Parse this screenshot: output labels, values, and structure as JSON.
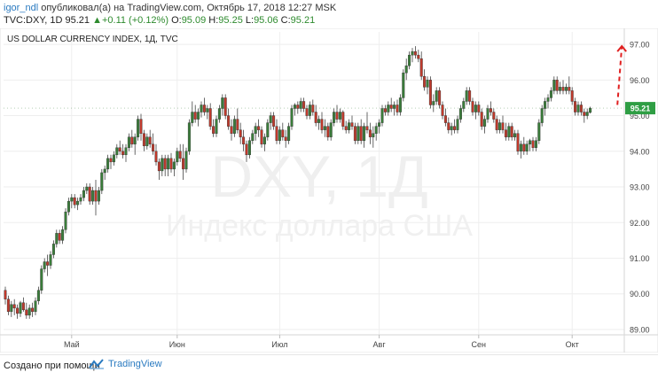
{
  "header": {
    "author": "igor_ndl",
    "published": "опубликовал(а) на TradingView.com, Октябрь 17, 2018 12:27 MSK",
    "symbol": "TVC:DXY, 1D",
    "last": "95.21",
    "change_arrow": "▲",
    "change": "+0.11 (+0.12%)",
    "o_label": "O:",
    "o_value": "95.09",
    "h_label": "H:",
    "h_value": "95.25",
    "l_label": "L:",
    "l_value": "95.06",
    "c_label": "C:",
    "c_value": "95.21"
  },
  "footer": {
    "credit": "Создано при помощи",
    "brand": "TradingView"
  },
  "chart_data": {
    "type": "candlestick",
    "title": "US DOLLAR CURRENCY INDEX, 1Д, TVC",
    "watermark_main": "DXY, 1Д",
    "watermark_sub": "Индекс доллара США",
    "ylim": [
      88.85,
      97.35
    ],
    "yticks": [
      89.0,
      90.0,
      91.0,
      92.0,
      93.0,
      94.0,
      95.0,
      96.0,
      97.0
    ],
    "ytick_labels": [
      "89.00",
      "90.00",
      "91.00",
      "92.00",
      "93.00",
      "94.00",
      "95.00",
      "96.00",
      "97.00"
    ],
    "xtick_labels": [
      "Май",
      "Июн",
      "Июл",
      "Авг",
      "Сен",
      "Окт"
    ],
    "xtick_index": [
      22,
      57,
      91,
      124,
      157,
      188
    ],
    "last_price": 95.21,
    "last_price_label": "95.21",
    "colors": {
      "up": "#3a7d3a",
      "down": "#c0392b",
      "accent": "#2a7ac0",
      "forecast": "#e02020"
    },
    "forecast_arrow": {
      "from_index": 203,
      "from": 95.3,
      "to": 96.95
    },
    "candles": [
      {
        "o": 90.1,
        "h": 90.2,
        "l": 89.7,
        "c": 89.85
      },
      {
        "o": 89.85,
        "h": 89.95,
        "l": 89.4,
        "c": 89.5
      },
      {
        "o": 89.5,
        "h": 89.8,
        "l": 89.35,
        "c": 89.7
      },
      {
        "o": 89.7,
        "h": 89.85,
        "l": 89.4,
        "c": 89.6
      },
      {
        "o": 89.6,
        "h": 89.7,
        "l": 89.3,
        "c": 89.45
      },
      {
        "o": 89.45,
        "h": 89.8,
        "l": 89.35,
        "c": 89.75
      },
      {
        "o": 89.75,
        "h": 89.9,
        "l": 89.5,
        "c": 89.55
      },
      {
        "o": 89.55,
        "h": 89.75,
        "l": 89.3,
        "c": 89.4
      },
      {
        "o": 89.4,
        "h": 89.7,
        "l": 89.3,
        "c": 89.6
      },
      {
        "o": 89.6,
        "h": 89.75,
        "l": 89.35,
        "c": 89.5
      },
      {
        "o": 89.5,
        "h": 89.9,
        "l": 89.4,
        "c": 89.8
      },
      {
        "o": 89.8,
        "h": 90.2,
        "l": 89.7,
        "c": 90.1
      },
      {
        "o": 90.1,
        "h": 90.8,
        "l": 90.0,
        "c": 90.7
      },
      {
        "o": 90.7,
        "h": 91.0,
        "l": 90.6,
        "c": 90.9
      },
      {
        "o": 90.9,
        "h": 91.1,
        "l": 90.5,
        "c": 90.8
      },
      {
        "o": 90.8,
        "h": 91.2,
        "l": 90.7,
        "c": 91.1
      },
      {
        "o": 91.1,
        "h": 91.5,
        "l": 91.0,
        "c": 91.4
      },
      {
        "o": 91.4,
        "h": 91.8,
        "l": 91.3,
        "c": 91.7
      },
      {
        "o": 91.7,
        "h": 91.8,
        "l": 91.4,
        "c": 91.5
      },
      {
        "o": 91.5,
        "h": 91.9,
        "l": 91.4,
        "c": 91.8
      },
      {
        "o": 91.8,
        "h": 92.4,
        "l": 91.7,
        "c": 92.3
      },
      {
        "o": 92.3,
        "h": 92.7,
        "l": 92.2,
        "c": 92.6
      },
      {
        "o": 92.6,
        "h": 92.8,
        "l": 92.4,
        "c": 92.7
      },
      {
        "o": 92.7,
        "h": 92.8,
        "l": 92.4,
        "c": 92.5
      },
      {
        "o": 92.5,
        "h": 92.7,
        "l": 92.35,
        "c": 92.6
      },
      {
        "o": 92.6,
        "h": 92.8,
        "l": 92.5,
        "c": 92.7
      },
      {
        "o": 92.7,
        "h": 93.0,
        "l": 92.6,
        "c": 92.9
      },
      {
        "o": 92.9,
        "h": 93.1,
        "l": 92.8,
        "c": 93.0
      },
      {
        "o": 93.0,
        "h": 93.1,
        "l": 92.5,
        "c": 92.6
      },
      {
        "o": 92.6,
        "h": 93.0,
        "l": 92.5,
        "c": 92.9
      },
      {
        "o": 92.9,
        "h": 93.2,
        "l": 92.2,
        "c": 92.6
      },
      {
        "o": 92.6,
        "h": 93.0,
        "l": 92.5,
        "c": 92.9
      },
      {
        "o": 92.9,
        "h": 93.5,
        "l": 92.8,
        "c": 93.4
      },
      {
        "o": 93.4,
        "h": 93.6,
        "l": 93.2,
        "c": 93.5
      },
      {
        "o": 93.5,
        "h": 93.9,
        "l": 93.4,
        "c": 93.8
      },
      {
        "o": 93.8,
        "h": 93.9,
        "l": 93.5,
        "c": 93.7
      },
      {
        "o": 93.7,
        "h": 94.0,
        "l": 93.6,
        "c": 93.9
      },
      {
        "o": 93.9,
        "h": 94.2,
        "l": 93.8,
        "c": 94.1
      },
      {
        "o": 94.1,
        "h": 94.3,
        "l": 93.9,
        "c": 94.0
      },
      {
        "o": 94.0,
        "h": 94.2,
        "l": 93.8,
        "c": 93.9
      },
      {
        "o": 93.9,
        "h": 94.2,
        "l": 93.7,
        "c": 94.1
      },
      {
        "o": 94.1,
        "h": 94.5,
        "l": 94.0,
        "c": 94.4
      },
      {
        "o": 94.4,
        "h": 94.6,
        "l": 94.1,
        "c": 94.2
      },
      {
        "o": 94.2,
        "h": 94.5,
        "l": 93.9,
        "c": 94.4
      },
      {
        "o": 94.4,
        "h": 95.0,
        "l": 94.3,
        "c": 94.9
      },
      {
        "o": 94.9,
        "h": 95.05,
        "l": 94.3,
        "c": 94.5
      },
      {
        "o": 94.5,
        "h": 94.6,
        "l": 94.0,
        "c": 94.15
      },
      {
        "o": 94.15,
        "h": 94.5,
        "l": 94.05,
        "c": 94.4
      },
      {
        "o": 94.4,
        "h": 94.6,
        "l": 94.1,
        "c": 94.2
      },
      {
        "o": 94.2,
        "h": 94.5,
        "l": 93.9,
        "c": 94.0
      },
      {
        "o": 94.0,
        "h": 94.2,
        "l": 93.6,
        "c": 93.7
      },
      {
        "o": 93.7,
        "h": 93.8,
        "l": 93.2,
        "c": 93.45
      },
      {
        "o": 93.45,
        "h": 93.9,
        "l": 93.3,
        "c": 93.8
      },
      {
        "o": 93.8,
        "h": 93.9,
        "l": 93.3,
        "c": 93.5
      },
      {
        "o": 93.5,
        "h": 93.9,
        "l": 93.3,
        "c": 93.8
      },
      {
        "o": 93.8,
        "h": 93.95,
        "l": 93.4,
        "c": 93.5
      },
      {
        "o": 93.5,
        "h": 93.8,
        "l": 93.3,
        "c": 93.7
      },
      {
        "o": 93.7,
        "h": 94.1,
        "l": 93.6,
        "c": 94.0
      },
      {
        "o": 94.0,
        "h": 94.2,
        "l": 93.7,
        "c": 93.8
      },
      {
        "o": 93.8,
        "h": 94.2,
        "l": 93.2,
        "c": 93.5
      },
      {
        "o": 93.5,
        "h": 94.1,
        "l": 93.4,
        "c": 94.0
      },
      {
        "o": 94.0,
        "h": 94.9,
        "l": 93.9,
        "c": 94.8
      },
      {
        "o": 94.8,
        "h": 95.4,
        "l": 94.7,
        "c": 95.1
      },
      {
        "o": 95.1,
        "h": 95.3,
        "l": 94.8,
        "c": 94.9
      },
      {
        "o": 94.9,
        "h": 95.2,
        "l": 94.7,
        "c": 95.1
      },
      {
        "o": 95.1,
        "h": 95.4,
        "l": 94.95,
        "c": 95.3
      },
      {
        "o": 95.3,
        "h": 95.5,
        "l": 95.0,
        "c": 95.1
      },
      {
        "o": 95.1,
        "h": 95.3,
        "l": 94.9,
        "c": 95.2
      },
      {
        "o": 95.2,
        "h": 95.35,
        "l": 94.6,
        "c": 94.7
      },
      {
        "o": 94.7,
        "h": 94.9,
        "l": 94.4,
        "c": 94.5
      },
      {
        "o": 94.5,
        "h": 95.0,
        "l": 94.4,
        "c": 94.9
      },
      {
        "o": 94.9,
        "h": 95.3,
        "l": 94.8,
        "c": 95.2
      },
      {
        "o": 95.2,
        "h": 95.6,
        "l": 95.0,
        "c": 95.5
      },
      {
        "o": 95.5,
        "h": 95.6,
        "l": 94.9,
        "c": 95.0
      },
      {
        "o": 95.0,
        "h": 95.2,
        "l": 94.6,
        "c": 94.7
      },
      {
        "o": 94.7,
        "h": 94.9,
        "l": 94.3,
        "c": 94.5
      },
      {
        "o": 94.5,
        "h": 95.0,
        "l": 94.4,
        "c": 94.9
      },
      {
        "o": 94.9,
        "h": 95.2,
        "l": 94.5,
        "c": 94.6
      },
      {
        "o": 94.6,
        "h": 94.8,
        "l": 94.2,
        "c": 94.4
      },
      {
        "o": 94.4,
        "h": 94.6,
        "l": 94.0,
        "c": 94.2
      },
      {
        "o": 94.2,
        "h": 94.3,
        "l": 93.7,
        "c": 93.9
      },
      {
        "o": 93.9,
        "h": 94.4,
        "l": 93.8,
        "c": 94.3
      },
      {
        "o": 94.3,
        "h": 94.6,
        "l": 94.2,
        "c": 94.5
      },
      {
        "o": 94.5,
        "h": 94.8,
        "l": 94.3,
        "c": 94.7
      },
      {
        "o": 94.7,
        "h": 94.9,
        "l": 94.4,
        "c": 94.6
      },
      {
        "o": 94.6,
        "h": 94.7,
        "l": 94.1,
        "c": 94.2
      },
      {
        "o": 94.2,
        "h": 94.5,
        "l": 94.0,
        "c": 94.4
      },
      {
        "o": 94.4,
        "h": 94.9,
        "l": 94.3,
        "c": 94.8
      },
      {
        "o": 94.8,
        "h": 95.1,
        "l": 94.6,
        "c": 95.0
      },
      {
        "o": 95.0,
        "h": 95.1,
        "l": 94.6,
        "c": 94.7
      },
      {
        "o": 94.7,
        "h": 94.9,
        "l": 94.2,
        "c": 94.3
      },
      {
        "o": 94.3,
        "h": 94.7,
        "l": 94.2,
        "c": 94.6
      },
      {
        "o": 94.6,
        "h": 94.8,
        "l": 94.3,
        "c": 94.4
      },
      {
        "o": 94.4,
        "h": 94.6,
        "l": 94.1,
        "c": 94.3
      },
      {
        "o": 94.3,
        "h": 94.8,
        "l": 94.2,
        "c": 94.7
      },
      {
        "o": 94.7,
        "h": 95.3,
        "l": 94.6,
        "c": 95.2
      },
      {
        "o": 95.2,
        "h": 95.35,
        "l": 95.0,
        "c": 95.3
      },
      {
        "o": 95.3,
        "h": 95.4,
        "l": 95.05,
        "c": 95.2
      },
      {
        "o": 95.2,
        "h": 95.5,
        "l": 95.1,
        "c": 95.4
      },
      {
        "o": 95.4,
        "h": 95.5,
        "l": 95.1,
        "c": 95.2
      },
      {
        "o": 95.2,
        "h": 95.3,
        "l": 94.9,
        "c": 95.0
      },
      {
        "o": 95.0,
        "h": 95.4,
        "l": 94.9,
        "c": 95.3
      },
      {
        "o": 95.3,
        "h": 95.45,
        "l": 95.0,
        "c": 95.1
      },
      {
        "o": 95.1,
        "h": 95.3,
        "l": 94.7,
        "c": 94.8
      },
      {
        "o": 94.8,
        "h": 95.0,
        "l": 94.6,
        "c": 94.9
      },
      {
        "o": 94.9,
        "h": 95.1,
        "l": 94.5,
        "c": 94.6
      },
      {
        "o": 94.6,
        "h": 94.9,
        "l": 94.4,
        "c": 94.7
      },
      {
        "o": 94.7,
        "h": 94.8,
        "l": 94.3,
        "c": 94.4
      },
      {
        "o": 94.4,
        "h": 94.9,
        "l": 94.3,
        "c": 94.8
      },
      {
        "o": 94.8,
        "h": 95.2,
        "l": 94.7,
        "c": 95.1
      },
      {
        "o": 95.1,
        "h": 95.3,
        "l": 94.8,
        "c": 94.9
      },
      {
        "o": 94.9,
        "h": 95.2,
        "l": 94.8,
        "c": 95.1
      },
      {
        "o": 95.1,
        "h": 95.15,
        "l": 94.6,
        "c": 94.7
      },
      {
        "o": 94.7,
        "h": 94.85,
        "l": 94.5,
        "c": 94.6
      },
      {
        "o": 94.6,
        "h": 94.9,
        "l": 94.5,
        "c": 94.8
      },
      {
        "o": 94.8,
        "h": 95.0,
        "l": 94.6,
        "c": 94.7
      },
      {
        "o": 94.7,
        "h": 94.8,
        "l": 94.2,
        "c": 94.3
      },
      {
        "o": 94.3,
        "h": 94.8,
        "l": 94.2,
        "c": 94.7
      },
      {
        "o": 94.7,
        "h": 94.9,
        "l": 94.2,
        "c": 94.3
      },
      {
        "o": 94.3,
        "h": 94.8,
        "l": 94.1,
        "c": 94.7
      },
      {
        "o": 94.7,
        "h": 95.1,
        "l": 94.5,
        "c": 94.6
      },
      {
        "o": 94.6,
        "h": 94.8,
        "l": 94.2,
        "c": 94.4
      },
      {
        "o": 94.4,
        "h": 94.7,
        "l": 94.1,
        "c": 94.5
      },
      {
        "o": 94.5,
        "h": 94.8,
        "l": 94.3,
        "c": 94.7
      },
      {
        "o": 94.7,
        "h": 94.9,
        "l": 94.5,
        "c": 94.8
      },
      {
        "o": 94.8,
        "h": 95.3,
        "l": 94.7,
        "c": 95.2
      },
      {
        "o": 95.2,
        "h": 95.3,
        "l": 95.0,
        "c": 95.1
      },
      {
        "o": 95.1,
        "h": 95.4,
        "l": 95.0,
        "c": 95.3
      },
      {
        "o": 95.3,
        "h": 95.5,
        "l": 95.1,
        "c": 95.2
      },
      {
        "o": 95.2,
        "h": 95.4,
        "l": 95.0,
        "c": 95.3
      },
      {
        "o": 95.3,
        "h": 95.45,
        "l": 95.0,
        "c": 95.1
      },
      {
        "o": 95.1,
        "h": 95.6,
        "l": 95.0,
        "c": 95.5
      },
      {
        "o": 95.5,
        "h": 96.3,
        "l": 95.4,
        "c": 96.2
      },
      {
        "o": 96.2,
        "h": 96.6,
        "l": 96.0,
        "c": 96.4
      },
      {
        "o": 96.4,
        "h": 96.8,
        "l": 96.3,
        "c": 96.7
      },
      {
        "o": 96.7,
        "h": 96.9,
        "l": 96.5,
        "c": 96.8
      },
      {
        "o": 96.8,
        "h": 96.95,
        "l": 96.6,
        "c": 96.7
      },
      {
        "o": 96.7,
        "h": 96.85,
        "l": 96.5,
        "c": 96.6
      },
      {
        "o": 96.6,
        "h": 96.8,
        "l": 96.0,
        "c": 96.1
      },
      {
        "o": 96.1,
        "h": 96.3,
        "l": 95.7,
        "c": 95.8
      },
      {
        "o": 95.8,
        "h": 96.1,
        "l": 95.6,
        "c": 96.0
      },
      {
        "o": 96.0,
        "h": 96.1,
        "l": 95.2,
        "c": 95.3
      },
      {
        "o": 95.3,
        "h": 95.6,
        "l": 95.1,
        "c": 95.4
      },
      {
        "o": 95.4,
        "h": 95.8,
        "l": 95.3,
        "c": 95.7
      },
      {
        "o": 95.7,
        "h": 95.8,
        "l": 95.2,
        "c": 95.3
      },
      {
        "o": 95.3,
        "h": 95.4,
        "l": 94.9,
        "c": 95.0
      },
      {
        "o": 95.0,
        "h": 95.2,
        "l": 94.7,
        "c": 94.8
      },
      {
        "o": 94.8,
        "h": 94.95,
        "l": 94.5,
        "c": 94.6
      },
      {
        "o": 94.6,
        "h": 94.8,
        "l": 94.45,
        "c": 94.7
      },
      {
        "o": 94.7,
        "h": 94.9,
        "l": 94.5,
        "c": 94.6
      },
      {
        "o": 94.6,
        "h": 95.0,
        "l": 94.5,
        "c": 94.9
      },
      {
        "o": 94.9,
        "h": 95.3,
        "l": 94.8,
        "c": 95.2
      },
      {
        "o": 95.2,
        "h": 95.5,
        "l": 95.1,
        "c": 95.4
      },
      {
        "o": 95.4,
        "h": 95.8,
        "l": 95.3,
        "c": 95.7
      },
      {
        "o": 95.7,
        "h": 95.8,
        "l": 95.3,
        "c": 95.4
      },
      {
        "o": 95.4,
        "h": 95.5,
        "l": 95.0,
        "c": 95.1
      },
      {
        "o": 95.1,
        "h": 95.4,
        "l": 94.9,
        "c": 95.3
      },
      {
        "o": 95.3,
        "h": 95.4,
        "l": 95.0,
        "c": 95.1
      },
      {
        "o": 95.1,
        "h": 95.2,
        "l": 94.6,
        "c": 94.7
      },
      {
        "o": 94.7,
        "h": 95.0,
        "l": 94.5,
        "c": 94.9
      },
      {
        "o": 94.9,
        "h": 95.3,
        "l": 94.8,
        "c": 95.2
      },
      {
        "o": 95.2,
        "h": 95.4,
        "l": 95.0,
        "c": 95.1
      },
      {
        "o": 95.1,
        "h": 95.2,
        "l": 94.8,
        "c": 94.9
      },
      {
        "o": 94.9,
        "h": 95.0,
        "l": 94.5,
        "c": 94.6
      },
      {
        "o": 94.6,
        "h": 94.9,
        "l": 94.5,
        "c": 94.8
      },
      {
        "o": 94.8,
        "h": 95.0,
        "l": 94.5,
        "c": 94.6
      },
      {
        "o": 94.6,
        "h": 94.8,
        "l": 94.3,
        "c": 94.4
      },
      {
        "o": 94.4,
        "h": 94.8,
        "l": 94.3,
        "c": 94.7
      },
      {
        "o": 94.7,
        "h": 94.8,
        "l": 94.3,
        "c": 94.4
      },
      {
        "o": 94.4,
        "h": 94.6,
        "l": 94.3,
        "c": 94.5
      },
      {
        "o": 94.5,
        "h": 94.6,
        "l": 93.9,
        "c": 94.0
      },
      {
        "o": 94.0,
        "h": 94.3,
        "l": 93.8,
        "c": 94.2
      },
      {
        "o": 94.2,
        "h": 94.4,
        "l": 93.9,
        "c": 94.0
      },
      {
        "o": 94.0,
        "h": 94.3,
        "l": 93.9,
        "c": 94.2
      },
      {
        "o": 94.2,
        "h": 94.35,
        "l": 94.0,
        "c": 94.3
      },
      {
        "o": 94.3,
        "h": 94.4,
        "l": 94.0,
        "c": 94.1
      },
      {
        "o": 94.1,
        "h": 94.4,
        "l": 94.0,
        "c": 94.3
      },
      {
        "o": 94.3,
        "h": 94.9,
        "l": 94.2,
        "c": 94.8
      },
      {
        "o": 94.8,
        "h": 95.3,
        "l": 94.7,
        "c": 95.2
      },
      {
        "o": 95.2,
        "h": 95.5,
        "l": 95.0,
        "c": 95.4
      },
      {
        "o": 95.4,
        "h": 95.6,
        "l": 95.2,
        "c": 95.5
      },
      {
        "o": 95.5,
        "h": 95.8,
        "l": 95.4,
        "c": 95.7
      },
      {
        "o": 95.7,
        "h": 96.1,
        "l": 95.6,
        "c": 96.0
      },
      {
        "o": 96.0,
        "h": 96.1,
        "l": 95.6,
        "c": 95.7
      },
      {
        "o": 95.7,
        "h": 95.95,
        "l": 95.6,
        "c": 95.8
      },
      {
        "o": 95.8,
        "h": 96.0,
        "l": 95.6,
        "c": 95.7
      },
      {
        "o": 95.7,
        "h": 95.9,
        "l": 95.6,
        "c": 95.8
      },
      {
        "o": 95.8,
        "h": 96.1,
        "l": 95.6,
        "c": 95.7
      },
      {
        "o": 95.7,
        "h": 95.8,
        "l": 95.3,
        "c": 95.4
      },
      {
        "o": 95.4,
        "h": 95.5,
        "l": 95.0,
        "c": 95.1
      },
      {
        "o": 95.1,
        "h": 95.4,
        "l": 95.0,
        "c": 95.3
      },
      {
        "o": 95.3,
        "h": 95.4,
        "l": 95.0,
        "c": 95.1
      },
      {
        "o": 95.1,
        "h": 95.2,
        "l": 94.8,
        "c": 95.0
      },
      {
        "o": 95.0,
        "h": 95.2,
        "l": 94.9,
        "c": 95.1
      },
      {
        "o": 95.09,
        "h": 95.25,
        "l": 95.06,
        "c": 95.21
      }
    ]
  }
}
